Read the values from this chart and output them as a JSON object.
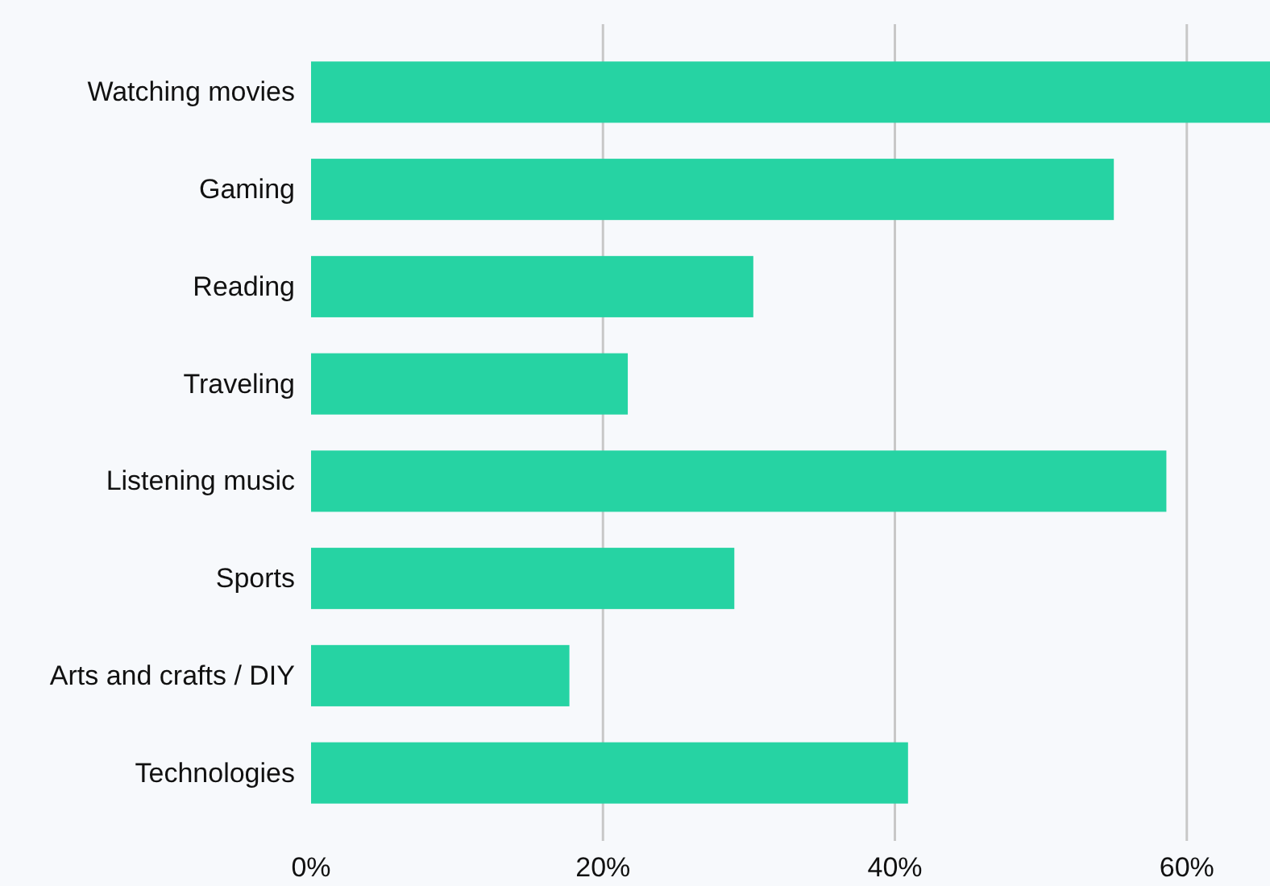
{
  "chart_data": {
    "type": "bar",
    "orientation": "horizontal",
    "categories": [
      "Watching movies",
      "Gaming",
      "Reading",
      "Traveling",
      "Listening music",
      "Sports",
      "Arts and crafts / DIY",
      "Technologies"
    ],
    "values": [
      65.7,
      55,
      30.3,
      21.7,
      58.6,
      29,
      17.7,
      40.9
    ],
    "color": "#26d3a3",
    "xlim": [
      0,
      65.7
    ],
    "xticks": [
      {
        "value": 0,
        "label": "0%"
      },
      {
        "value": 20,
        "label": "20%"
      },
      {
        "value": 40,
        "label": "40%"
      },
      {
        "value": 60,
        "label": "60%"
      }
    ],
    "grid": "x"
  }
}
